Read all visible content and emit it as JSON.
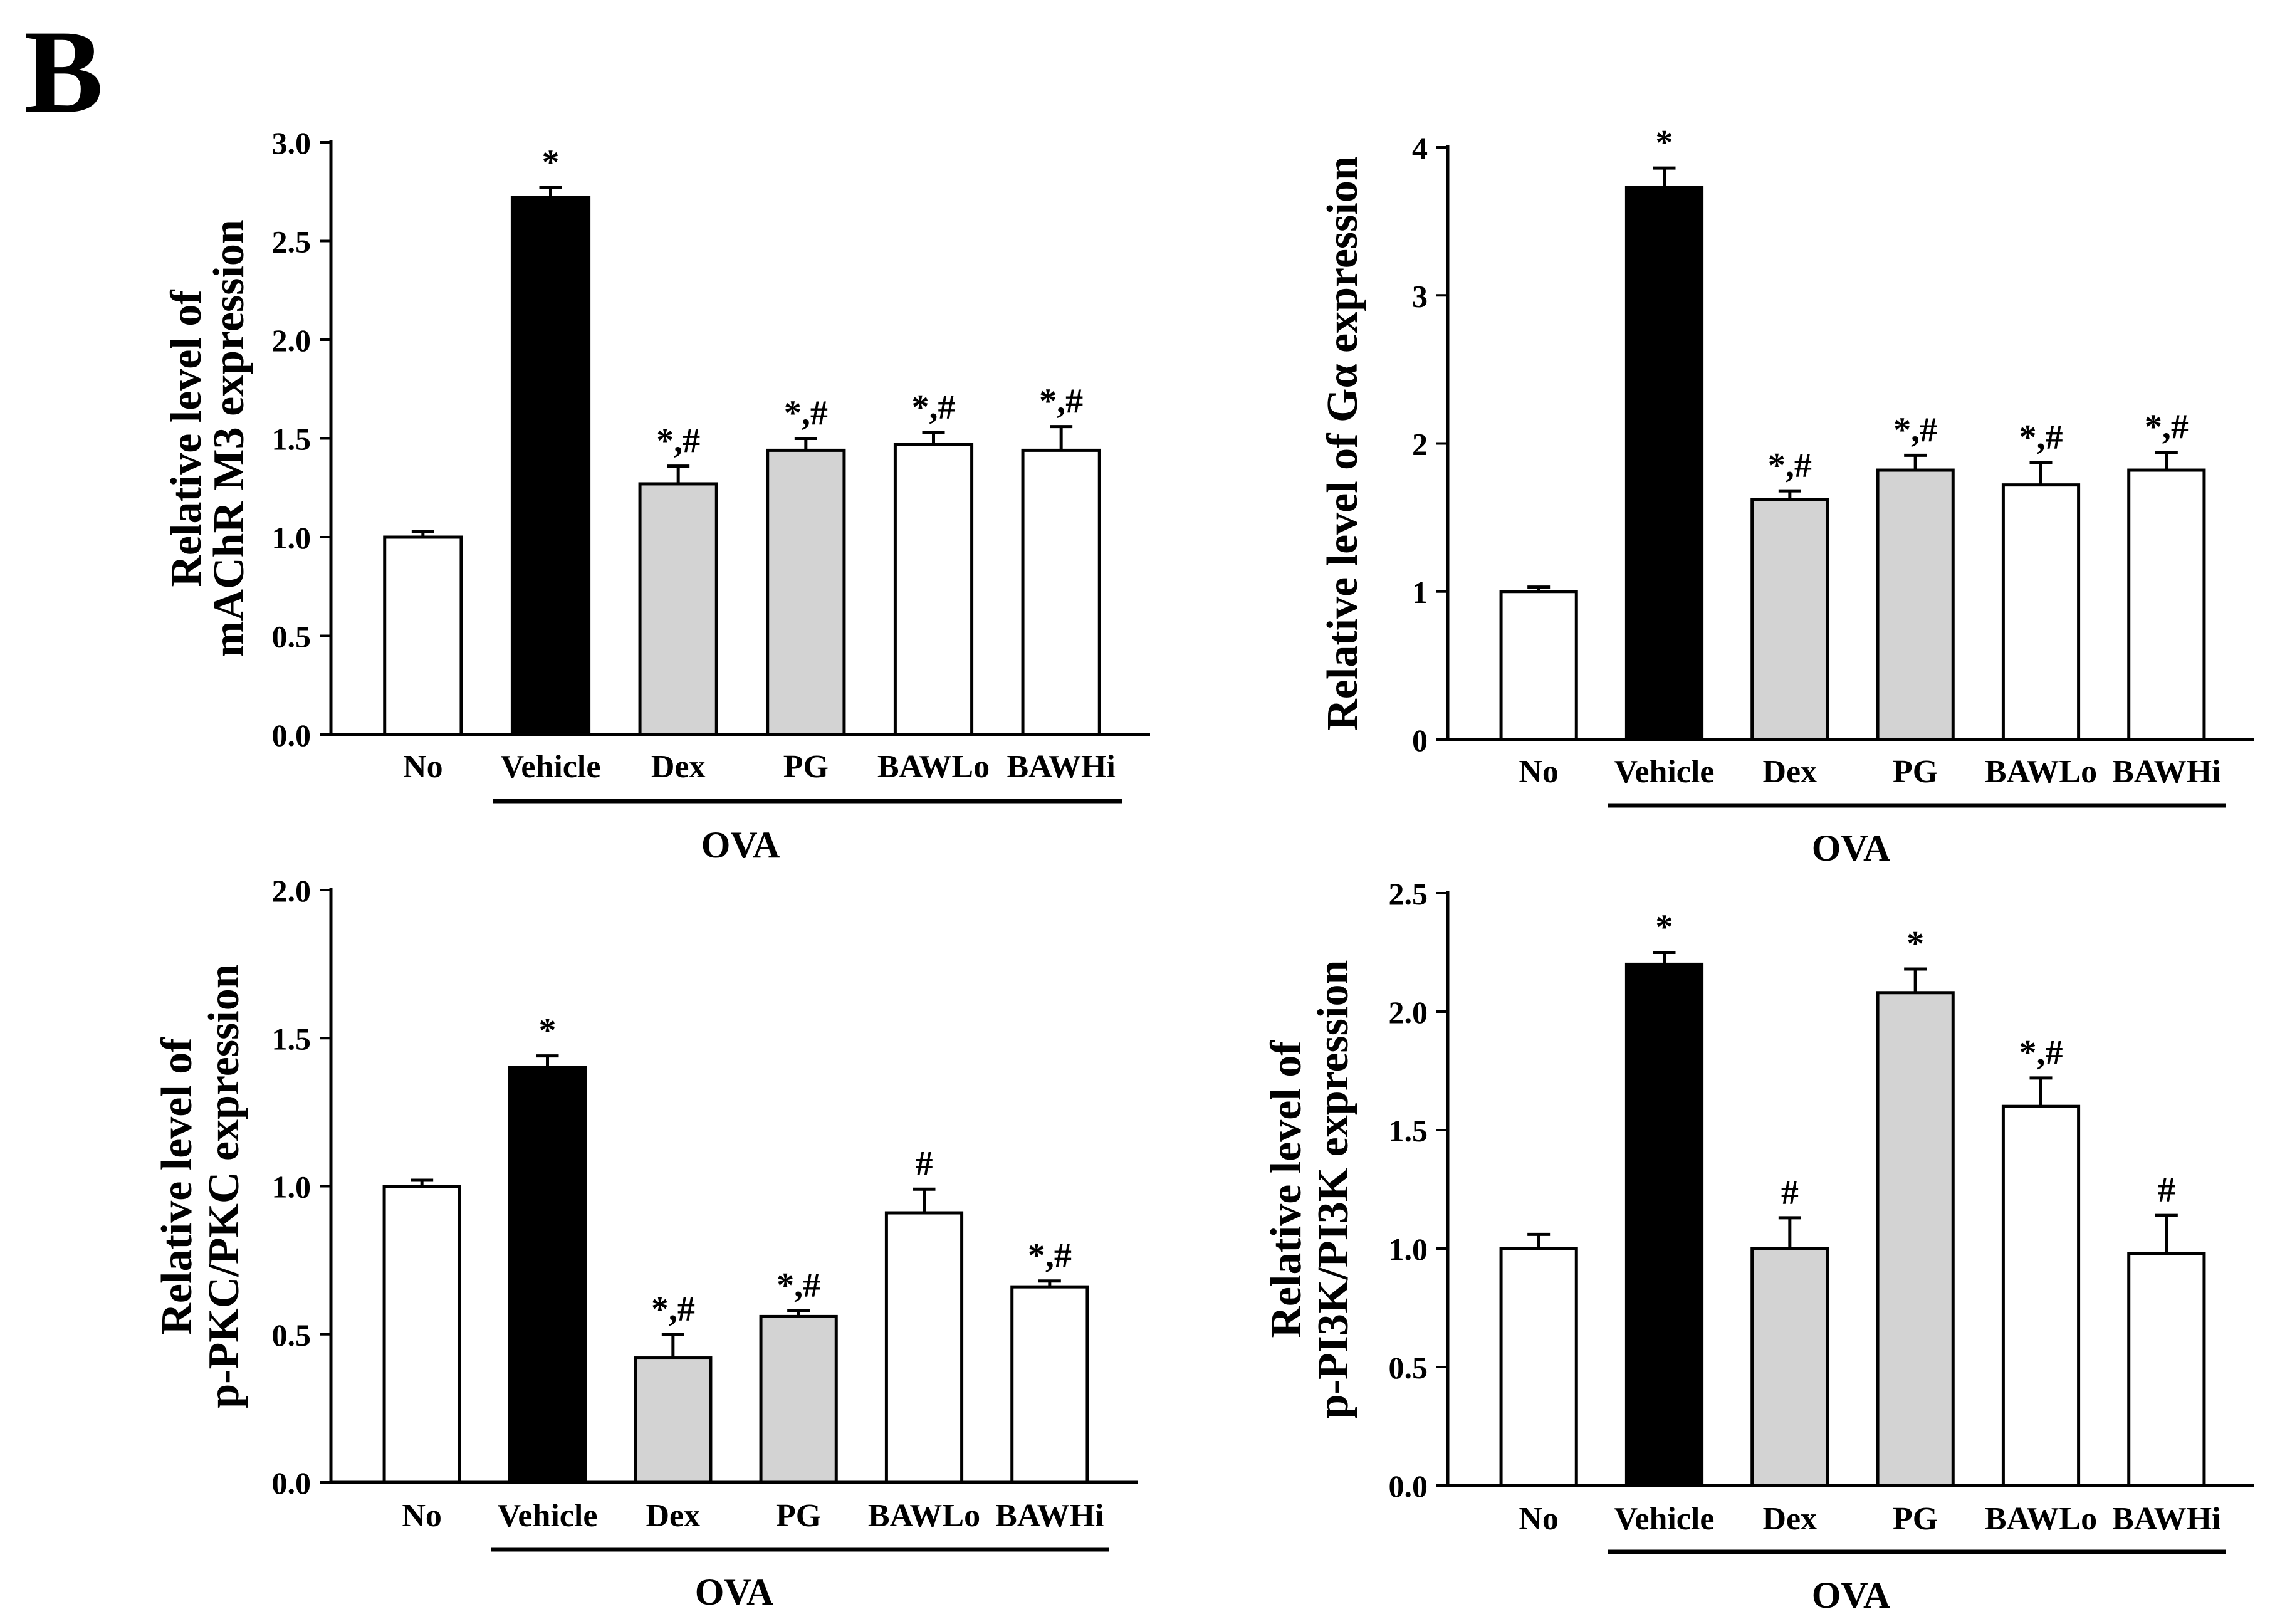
{
  "figure": {
    "panel_label": "B"
  },
  "chart_data": [
    {
      "type": "bar",
      "title": "",
      "xlabel": "OVA",
      "ylabel": [
        "Relative level of",
        "mAChR M3 expression"
      ],
      "ylim": [
        0,
        3.0
      ],
      "yticks": [
        0.0,
        0.5,
        1.0,
        1.5,
        2.0,
        2.5,
        3.0
      ],
      "ytick_labels": [
        "0.0",
        "0.5",
        "1.0",
        "1.5",
        "2.0",
        "2.5",
        "3.0"
      ],
      "categories": [
        "No",
        "Vehicle",
        "Dex",
        "PG",
        "BAWLo",
        "BAWHi"
      ],
      "values": [
        1.0,
        2.72,
        1.27,
        1.44,
        1.47,
        1.44
      ],
      "errors": [
        0.03,
        0.05,
        0.09,
        0.06,
        0.06,
        0.12
      ],
      "colors": [
        "#ffffff",
        "#000000",
        "#d3d3d3",
        "#d3d3d3",
        "#ffffff",
        "#ffffff"
      ],
      "annotations": [
        "",
        "*",
        "*,#",
        "*,#",
        "*,#",
        "*,#"
      ],
      "group_label": "OVA",
      "group_start": 1
    },
    {
      "type": "bar",
      "title": "",
      "xlabel": "OVA",
      "ylabel": [
        "Relative level of Gα expression"
      ],
      "ylim": [
        0,
        4
      ],
      "yticks": [
        0,
        1,
        2,
        3,
        4
      ],
      "ytick_labels": [
        "0",
        "1",
        "2",
        "3",
        "4"
      ],
      "categories": [
        "No",
        "Vehicle",
        "Dex",
        "PG",
        "BAWLo",
        "BAWHi"
      ],
      "values": [
        1.0,
        3.73,
        1.62,
        1.82,
        1.72,
        1.82
      ],
      "errors": [
        0.03,
        0.13,
        0.06,
        0.1,
        0.15,
        0.12
      ],
      "colors": [
        "#ffffff",
        "#000000",
        "#d3d3d3",
        "#d3d3d3",
        "#ffffff",
        "#ffffff"
      ],
      "annotations": [
        "",
        "*",
        "*,#",
        "*,#",
        "*,#",
        "*,#"
      ],
      "group_label": "OVA",
      "group_start": 1
    },
    {
      "type": "bar",
      "title": "",
      "xlabel": "OVA",
      "ylabel": [
        "Relative level of",
        "p-PKC/PKC expression"
      ],
      "ylim": [
        0,
        2.0
      ],
      "yticks": [
        0.0,
        0.5,
        1.0,
        1.5,
        2.0
      ],
      "ytick_labels": [
        "0.0",
        "0.5",
        "1.0",
        "1.5",
        "2.0"
      ],
      "categories": [
        "No",
        "Vehicle",
        "Dex",
        "PG",
        "BAWLo",
        "BAWHi"
      ],
      "values": [
        1.0,
        1.4,
        0.42,
        0.56,
        0.91,
        0.66
      ],
      "errors": [
        0.02,
        0.04,
        0.08,
        0.02,
        0.08,
        0.02
      ],
      "colors": [
        "#ffffff",
        "#000000",
        "#d3d3d3",
        "#d3d3d3",
        "#ffffff",
        "#ffffff"
      ],
      "annotations": [
        "",
        "*",
        "*,#",
        "*,#",
        "#",
        "*,#"
      ],
      "group_label": "OVA",
      "group_start": 1
    },
    {
      "type": "bar",
      "title": "",
      "xlabel": "OVA",
      "ylabel": [
        "Relative level of",
        "p-PI3K/PI3K expression"
      ],
      "ylim": [
        0,
        2.5
      ],
      "yticks": [
        0.0,
        0.5,
        1.0,
        1.5,
        2.0,
        2.5
      ],
      "ytick_labels": [
        "0.0",
        "0.5",
        "1.0",
        "1.5",
        "2.0",
        "2.5"
      ],
      "categories": [
        "No",
        "Vehicle",
        "Dex",
        "PG",
        "BAWLo",
        "BAWHi"
      ],
      "values": [
        1.0,
        2.2,
        1.0,
        2.08,
        1.6,
        0.98
      ],
      "errors": [
        0.06,
        0.05,
        0.13,
        0.1,
        0.12,
        0.16
      ],
      "colors": [
        "#ffffff",
        "#000000",
        "#d3d3d3",
        "#d3d3d3",
        "#ffffff",
        "#ffffff"
      ],
      "annotations": [
        "",
        "*",
        "#",
        "*",
        "*,#",
        "#"
      ],
      "group_label": "OVA",
      "group_start": 1
    }
  ]
}
